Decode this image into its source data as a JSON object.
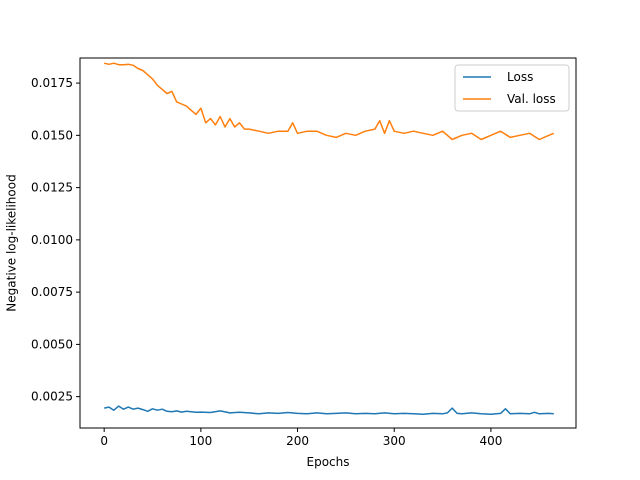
{
  "chart_data": {
    "type": "line",
    "title": "",
    "xlabel": "Epochs",
    "ylabel": "Negative log-likelihood",
    "xlim": [
      -25,
      488
    ],
    "ylim": [
      0.001,
      0.0187
    ],
    "xticks": [
      0,
      100,
      200,
      300,
      400
    ],
    "xtick_labels": [
      "0",
      "100",
      "200",
      "300",
      "400"
    ],
    "yticks": [
      0.0025,
      0.005,
      0.0075,
      0.01,
      0.0125,
      0.015,
      0.0175
    ],
    "ytick_labels": [
      "0.0025",
      "0.0050",
      "0.0075",
      "0.0100",
      "0.0125",
      "0.0150",
      "0.0175"
    ],
    "grid": false,
    "legend_position": "top-right",
    "series": [
      {
        "name": "Loss",
        "color": "#1f77b4",
        "x": [
          0,
          5,
          10,
          15,
          20,
          25,
          30,
          35,
          40,
          45,
          50,
          55,
          60,
          65,
          70,
          75,
          80,
          85,
          90,
          95,
          100,
          110,
          120,
          130,
          140,
          150,
          160,
          170,
          180,
          190,
          200,
          210,
          220,
          230,
          240,
          250,
          260,
          270,
          280,
          290,
          300,
          310,
          320,
          330,
          340,
          350,
          355,
          360,
          365,
          370,
          380,
          390,
          400,
          410,
          415,
          420,
          430,
          440,
          445,
          450,
          460,
          465
        ],
        "y": [
          0.00195,
          0.002,
          0.00185,
          0.00205,
          0.0019,
          0.002,
          0.0019,
          0.00195,
          0.00188,
          0.0018,
          0.00192,
          0.00185,
          0.0019,
          0.0018,
          0.00178,
          0.00182,
          0.00176,
          0.0018,
          0.00178,
          0.00175,
          0.00176,
          0.00174,
          0.00182,
          0.00172,
          0.00175,
          0.00172,
          0.00168,
          0.00172,
          0.0017,
          0.00174,
          0.0017,
          0.00168,
          0.00172,
          0.00168,
          0.0017,
          0.00172,
          0.00168,
          0.0017,
          0.00168,
          0.00172,
          0.00168,
          0.0017,
          0.00168,
          0.00166,
          0.0017,
          0.00168,
          0.00172,
          0.00195,
          0.0017,
          0.00168,
          0.00172,
          0.00168,
          0.00166,
          0.0017,
          0.00192,
          0.00168,
          0.0017,
          0.00168,
          0.00175,
          0.00168,
          0.0017,
          0.00168
        ]
      },
      {
        "name": "Val. loss",
        "color": "#ff7f0e",
        "x": [
          0,
          5,
          10,
          15,
          20,
          25,
          30,
          35,
          40,
          45,
          50,
          55,
          60,
          65,
          70,
          75,
          80,
          85,
          90,
          95,
          100,
          105,
          110,
          115,
          120,
          125,
          130,
          135,
          140,
          145,
          150,
          160,
          170,
          180,
          190,
          195,
          200,
          210,
          220,
          230,
          240,
          250,
          260,
          270,
          280,
          285,
          290,
          295,
          300,
          310,
          320,
          330,
          340,
          350,
          360,
          370,
          380,
          390,
          400,
          410,
          420,
          430,
          440,
          450,
          460,
          465
        ],
        "y": [
          0.01845,
          0.0184,
          0.01845,
          0.01838,
          0.01838,
          0.0184,
          0.01835,
          0.0182,
          0.0181,
          0.0179,
          0.0177,
          0.0174,
          0.0172,
          0.017,
          0.0171,
          0.0166,
          0.0165,
          0.0164,
          0.0162,
          0.016,
          0.0163,
          0.0156,
          0.0158,
          0.0155,
          0.0159,
          0.0154,
          0.0158,
          0.0154,
          0.0156,
          0.0153,
          0.0153,
          0.0152,
          0.0151,
          0.0152,
          0.0152,
          0.0156,
          0.0151,
          0.0152,
          0.0152,
          0.015,
          0.0149,
          0.0151,
          0.015,
          0.0152,
          0.0153,
          0.0157,
          0.0151,
          0.0157,
          0.0152,
          0.0151,
          0.0152,
          0.0151,
          0.015,
          0.0152,
          0.0148,
          0.015,
          0.0151,
          0.0148,
          0.015,
          0.0152,
          0.0149,
          0.015,
          0.0151,
          0.0148,
          0.015,
          0.0151
        ]
      }
    ]
  }
}
